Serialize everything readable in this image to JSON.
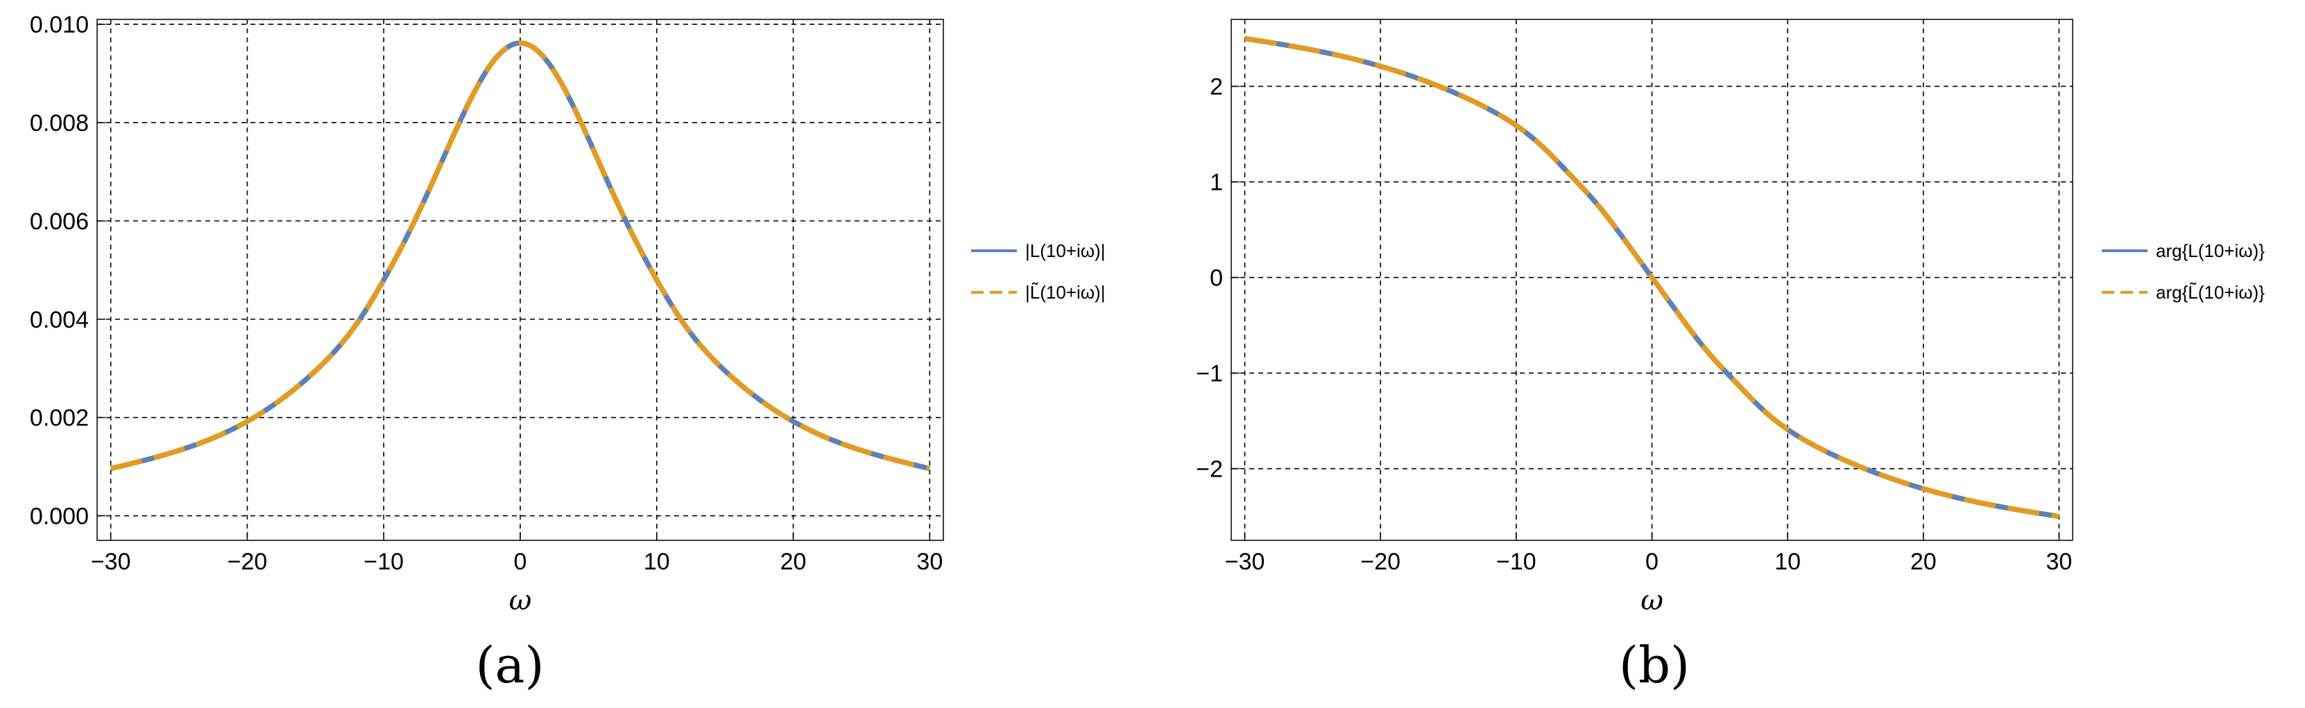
{
  "colors": {
    "series_solid": "#5E81B5",
    "series_dashed": "#E19C24",
    "grid": "#000000",
    "frame": "#000000"
  },
  "chart_data": [
    {
      "type": "line",
      "panel_label": "(a)",
      "xlabel": "ω",
      "ylabel": "",
      "xlim": [
        -31,
        31
      ],
      "ylim": [
        -0.0005,
        0.0101
      ],
      "xticks": [
        -30,
        -20,
        -10,
        0,
        10,
        20,
        30
      ],
      "xtick_labels": [
        "−30",
        "−20",
        "−10",
        "0",
        "10",
        "20",
        "30"
      ],
      "yticks": [
        0,
        0.002,
        0.004,
        0.006,
        0.008,
        0.01
      ],
      "ytick_labels": [
        "0.000",
        "0.002",
        "0.004",
        "0.006",
        "0.008",
        "0.010"
      ],
      "grid": true,
      "legend_position": "right",
      "x": [
        -30,
        -25,
        -20,
        -15,
        -12,
        -10,
        -8,
        -6,
        -4,
        -2,
        0,
        2,
        4,
        6,
        8,
        10,
        12,
        15,
        20,
        25,
        30
      ],
      "series": [
        {
          "name": "|L(10+iω)|",
          "style": "solid",
          "values": [
            0.00096,
            0.00133,
            0.00192,
            0.00295,
            0.0039,
            0.0048,
            0.00585,
            0.00705,
            0.00827,
            0.00924,
            0.00962,
            0.00924,
            0.00827,
            0.00705,
            0.00585,
            0.0048,
            0.0039,
            0.00295,
            0.00192,
            0.00133,
            0.00096
          ]
        },
        {
          "name": "|L̃(10+iω)|",
          "style": "dashed",
          "values": [
            0.00096,
            0.00133,
            0.00192,
            0.00295,
            0.0039,
            0.0048,
            0.00585,
            0.00705,
            0.00827,
            0.00924,
            0.00962,
            0.00924,
            0.00827,
            0.00705,
            0.00585,
            0.0048,
            0.0039,
            0.00295,
            0.00192,
            0.00133,
            0.00096
          ]
        }
      ]
    },
    {
      "type": "line",
      "panel_label": "(b)",
      "xlabel": "ω",
      "ylabel": "",
      "xlim": [
        -31,
        31
      ],
      "ylim": [
        -2.75,
        2.7
      ],
      "xticks": [
        -30,
        -20,
        -10,
        0,
        10,
        20,
        30
      ],
      "xtick_labels": [
        "−30",
        "−20",
        "−10",
        "0",
        "10",
        "20",
        "30"
      ],
      "yticks": [
        -2,
        -1,
        0,
        1,
        2
      ],
      "ytick_labels": [
        "−2",
        "−1",
        "0",
        "1",
        "2"
      ],
      "grid": true,
      "legend_position": "right",
      "x": [
        -30,
        -25,
        -20,
        -15,
        -12,
        -10,
        -8,
        -6,
        -4,
        -2,
        0,
        2,
        4,
        6,
        8,
        10,
        12,
        15,
        20,
        25,
        30
      ],
      "series": [
        {
          "name": "arg{L(10+iω)}",
          "style": "solid",
          "values": [
            2.5,
            2.38,
            2.21,
            1.96,
            1.76,
            1.59,
            1.36,
            1.07,
            0.76,
            0.39,
            0.0,
            -0.39,
            -0.76,
            -1.07,
            -1.36,
            -1.59,
            -1.76,
            -1.96,
            -2.21,
            -2.38,
            -2.5
          ]
        },
        {
          "name": "arg{L̃(10+iω)}",
          "style": "dashed",
          "values": [
            2.5,
            2.38,
            2.21,
            1.96,
            1.76,
            1.59,
            1.36,
            1.07,
            0.76,
            0.39,
            0.0,
            -0.39,
            -0.76,
            -1.07,
            -1.36,
            -1.59,
            -1.76,
            -1.96,
            -2.21,
            -2.38,
            -2.5
          ]
        }
      ]
    }
  ]
}
